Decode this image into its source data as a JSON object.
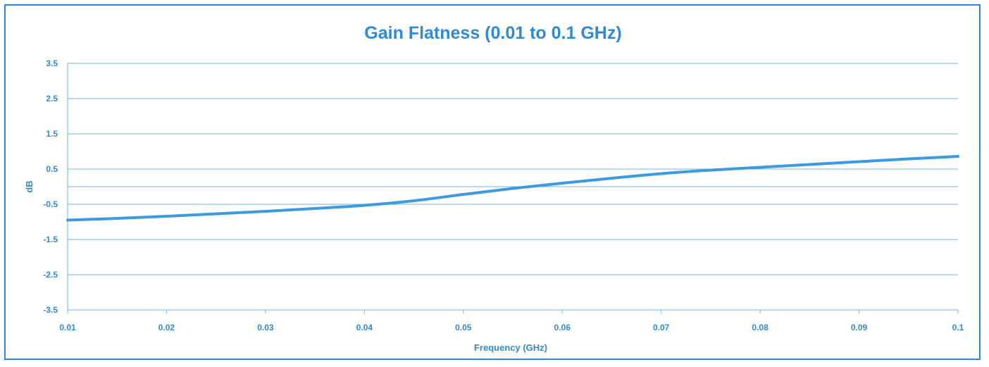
{
  "chart_data": {
    "type": "line",
    "title": "Gain Flatness (0.01 to 0.1 GHz)",
    "xlabel": "Frequency (GHz)",
    "ylabel": "dB",
    "xlim": [
      0.01,
      0.1
    ],
    "ylim": [
      -3.5,
      3.5
    ],
    "x_ticks": [
      "0.01",
      "0.02",
      "0.03",
      "0.04",
      "0.05",
      "0.06",
      "0.07",
      "0.08",
      "0.09",
      "0.1"
    ],
    "y_ticks": [
      "3.5",
      "2.5",
      "1.5",
      "0.5",
      "-0.5",
      "-1.5",
      "-2.5",
      "-3.5"
    ],
    "grid": true,
    "series": [
      {
        "x": [
          0.01,
          0.015,
          0.02,
          0.025,
          0.03,
          0.035,
          0.04,
          0.045,
          0.05,
          0.055,
          0.06,
          0.065,
          0.07,
          0.075,
          0.08,
          0.085,
          0.09,
          0.095,
          0.1
        ],
        "values": [
          -0.95,
          -0.9,
          -0.84,
          -0.77,
          -0.7,
          -0.62,
          -0.53,
          -0.4,
          -0.22,
          -0.05,
          0.1,
          0.24,
          0.37,
          0.47,
          0.55,
          0.63,
          0.71,
          0.79,
          0.86
        ],
        "color": "#3a9be0"
      }
    ],
    "colors": {
      "text": "#2e8ad8",
      "grid": "#6fb4ea",
      "line": "#3a9be0",
      "border": "#2e8ad8"
    }
  }
}
